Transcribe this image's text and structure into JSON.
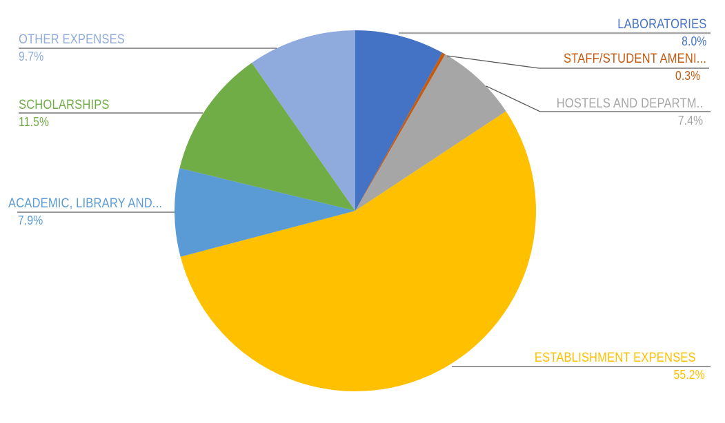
{
  "chart_data": {
    "type": "pie",
    "title": "",
    "start_angle_deg": 0,
    "direction": "clockwise",
    "legend": "none",
    "background": "#FFFFFF",
    "slices": [
      {
        "label": "LABORATORIES",
        "value": 8.0,
        "pct_text": "8.0%",
        "color": "#4472C4"
      },
      {
        "label": "STAFF/STUDENT AMENI...",
        "value": 0.3,
        "pct_text": "0.3%",
        "color": "#C55A11"
      },
      {
        "label": "HOSTELS AND DEPARTM..",
        "value": 7.4,
        "pct_text": "7.4%",
        "color": "#A6A6A6"
      },
      {
        "label": "ESTABLISHMENT EXPENSES",
        "value": 55.2,
        "pct_text": "55.2%",
        "color": "#FFC000"
      },
      {
        "label": "ACADEMIC, LIBRARY AND...",
        "value": 7.9,
        "pct_text": "7.9%",
        "color": "#5B9BD5"
      },
      {
        "label": "SCHOLARSHIPS",
        "value": 11.5,
        "pct_text": "11.5%",
        "color": "#70AD47"
      },
      {
        "label": "OTHER EXPENSES",
        "value": 9.7,
        "pct_text": "9.7%",
        "color": "#8FAADC"
      }
    ],
    "leader_line_colors": {
      "laboratories_line": "#A6A6A6",
      "default_line": "#595959"
    }
  }
}
